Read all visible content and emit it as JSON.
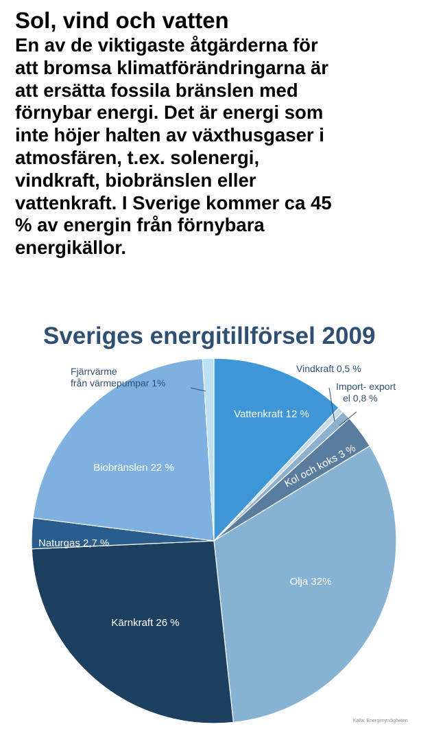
{
  "article": {
    "title": "Sol, vind och vatten",
    "lines": [
      "En av de viktigaste åtgärderna för",
      "att bromsa klimatförändringarna är",
      "att ersätta fossila bränslen med",
      "förnybar energi. Det är energi som",
      "inte höjer halten av växthusgaser i",
      "atmosfären, t.ex. solenergi,",
      "vindkraft, biobränslen eller",
      "vattenkraft. I Sverige kommer ca 45",
      "% av energin från förnybara",
      "energikällor."
    ]
  },
  "chart_data": {
    "type": "pie",
    "title": "Sveriges energitillförsel 2009",
    "source": "Källa: Energimyndigheten",
    "start_angle_deg": 0,
    "direction": "clockwise",
    "slices": [
      {
        "label": "Vattenkraft 12 %",
        "value": 12,
        "color": "#3d97d6",
        "label_color": "#ffffff"
      },
      {
        "label": "Vindkraft 0,5 %",
        "value": 0.5,
        "color": "#c6daea",
        "label_color": "#2f4f73"
      },
      {
        "label": "Import- export el 0,8 %",
        "value": 0.8,
        "color": "#8fb0cc",
        "label_color": "#2f4f73"
      },
      {
        "label": "Kol och koks 3 %",
        "value": 3,
        "color": "#5a7d9f",
        "label_color": "#ffffff"
      },
      {
        "label": "Olja 32%",
        "value": 32,
        "color": "#86b2d3",
        "label_color": "#ffffff"
      },
      {
        "label": "Kärnkraft 26 %",
        "value": 26,
        "color": "#1d3f60",
        "label_color": "#ffffff"
      },
      {
        "label": "Naturgas 2,7 %",
        "value": 2.7,
        "color": "#295d8d",
        "label_color": "#ffffff"
      },
      {
        "label": "Biobränslen 22 %",
        "value": 22,
        "color": "#7eb1e0",
        "label_color": "#ffffff"
      },
      {
        "label": "Fjärrvärme från värmepumpar 1%",
        "value": 1,
        "color": "#bcdff3",
        "label_color": "#2f4f73"
      }
    ]
  }
}
